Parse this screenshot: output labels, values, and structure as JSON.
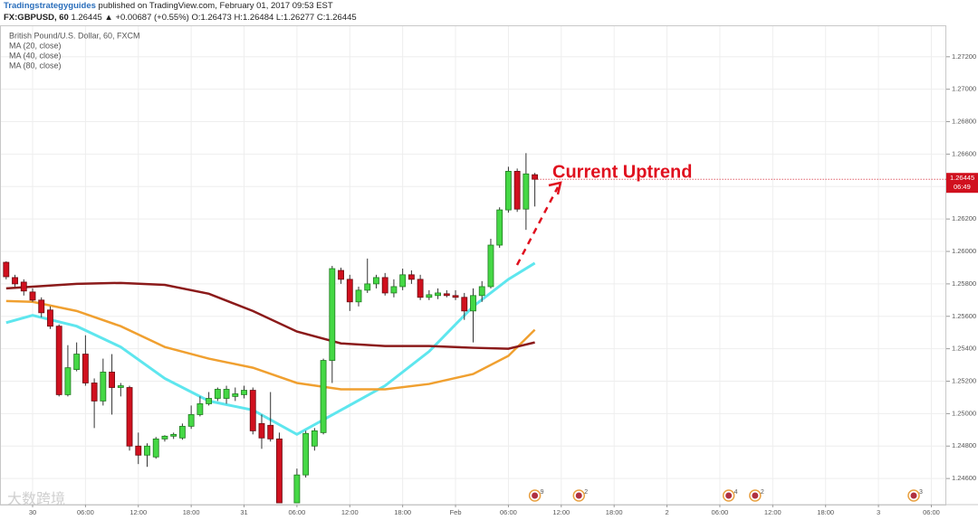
{
  "header": {
    "author": "Tradingstrategyguides",
    "published": "published on TradingView.com, February 01, 2017 09:53 EST",
    "symbol": "FX:GBPUSD, 60",
    "quote": "1.26445 ▲ +0.00687 (+0.55%) O:1.26473 H:1.26484 L:1.26277 C:1.26445"
  },
  "watermark": "大数跨境",
  "chart_data": {
    "type": "candlestick",
    "title": "British Pound/U.S. Dollar, 60, FXCM",
    "annotation": "Current Uptrend",
    "up_color": "#45d845",
    "down_color": "#d0101e",
    "grid": true,
    "xlim": [
      -3.7,
      103.7
    ],
    "xticks": [
      {
        "value": 0,
        "label": "30"
      },
      {
        "value": 6,
        "label": "06:00"
      },
      {
        "value": 12,
        "label": "12:00"
      },
      {
        "value": 18,
        "label": "18:00"
      },
      {
        "value": 24,
        "label": "31"
      },
      {
        "value": 30,
        "label": "06:00"
      },
      {
        "value": 36,
        "label": "12:00"
      },
      {
        "value": 42,
        "label": "18:00"
      },
      {
        "value": 48,
        "label": "Feb"
      },
      {
        "value": 54,
        "label": "06:00"
      },
      {
        "value": 60,
        "label": "12:00"
      },
      {
        "value": 66,
        "label": "18:00"
      },
      {
        "value": 72,
        "label": "2"
      },
      {
        "value": 78,
        "label": "06:00"
      },
      {
        "value": 84,
        "label": "12:00"
      },
      {
        "value": 90,
        "label": "18:00"
      },
      {
        "value": 96,
        "label": "3"
      },
      {
        "value": 102,
        "label": "06:00"
      }
    ],
    "ylim": [
      1.24439,
      1.27394
    ],
    "yticks": [
      {
        "value": 1.246,
        "label": "1.24600"
      },
      {
        "value": 1.248,
        "label": "1.24800"
      },
      {
        "value": 1.25,
        "label": "1.25000"
      },
      {
        "value": 1.252,
        "label": "1.25200"
      },
      {
        "value": 1.254,
        "label": "1.25400"
      },
      {
        "value": 1.256,
        "label": "1.25600"
      },
      {
        "value": 1.258,
        "label": "1.25800"
      },
      {
        "value": 1.26,
        "label": "1.26000"
      },
      {
        "value": 1.262,
        "label": "1.26200"
      },
      {
        "value": 1.264,
        "label": "1.26400"
      },
      {
        "value": 1.266,
        "label": "1.26600"
      },
      {
        "value": 1.268,
        "label": "1.26800"
      },
      {
        "value": 1.27,
        "label": "1.27000"
      },
      {
        "value": 1.272,
        "label": "1.27200"
      }
    ],
    "last_price": {
      "value": 1.26445,
      "label": "1.26445"
    },
    "countdown": "06:49",
    "x": [
      -3,
      -2,
      -1,
      0,
      1,
      2,
      3,
      4,
      5,
      6,
      7,
      8,
      9,
      10,
      11,
      12,
      13,
      14,
      15,
      16,
      17,
      18,
      19,
      20,
      21,
      22,
      23,
      24,
      25,
      26,
      27,
      28,
      30,
      31,
      32,
      33,
      34,
      35,
      36,
      37,
      38,
      39,
      40,
      41,
      42,
      43,
      44,
      45,
      46,
      47,
      48,
      49,
      50,
      51,
      52,
      53,
      54,
      55,
      56,
      57
    ],
    "open": [
      1.25933,
      1.25839,
      1.25811,
      1.2575,
      1.257,
      1.25639,
      1.25539,
      1.25117,
      1.25272,
      1.25367,
      1.25189,
      1.25078,
      1.25256,
      1.25161,
      1.25161,
      1.248,
      1.24744,
      1.24733,
      1.24844,
      1.24861,
      1.2485,
      1.24922,
      1.24994,
      1.25061,
      1.25094,
      1.25094,
      1.25106,
      1.25117,
      1.25144,
      1.24939,
      1.24928,
      1.24844,
      1.2445,
      1.24622,
      1.248,
      1.24883,
      1.25328,
      1.25883,
      1.25828,
      1.25689,
      1.25761,
      1.258,
      1.25839,
      1.25744,
      1.25783,
      1.25856,
      1.25828,
      1.25717,
      1.25728,
      1.25739,
      1.25728,
      1.25717,
      1.25633,
      1.25728,
      1.25783,
      1.26039,
      1.26256,
      1.26494,
      1.26261,
      1.26473
    ],
    "high": [
      1.25939,
      1.25856,
      1.25828,
      1.25772,
      1.25717,
      1.25661,
      1.2555,
      1.25422,
      1.25439,
      1.25483,
      1.25217,
      1.25339,
      1.25367,
      1.25189,
      1.25172,
      1.24883,
      1.24817,
      1.24856,
      1.24867,
      1.24883,
      1.24939,
      1.2505,
      1.25106,
      1.25133,
      1.25161,
      1.25172,
      1.25161,
      1.25172,
      1.25161,
      1.24994,
      1.25133,
      1.24883,
      1.24661,
      1.24894,
      1.24911,
      1.25339,
      1.25911,
      1.259,
      1.25856,
      1.25783,
      1.25956,
      1.25856,
      1.25867,
      1.25828,
      1.25894,
      1.25883,
      1.25856,
      1.25761,
      1.25772,
      1.25761,
      1.25761,
      1.25744,
      1.25772,
      1.25817,
      1.26078,
      1.26272,
      1.26522,
      1.26511,
      1.26606,
      1.26484
    ],
    "low": [
      1.25828,
      1.25783,
      1.25728,
      1.25689,
      1.25594,
      1.25522,
      1.25106,
      1.25106,
      1.25261,
      1.25172,
      1.24911,
      1.2505,
      1.24994,
      1.25106,
      1.24772,
      1.24689,
      1.24672,
      1.24722,
      1.24828,
      1.24844,
      1.24839,
      1.24906,
      1.24983,
      1.2505,
      1.25078,
      1.25061,
      1.25078,
      1.25094,
      1.24872,
      1.24783,
      1.24828,
      1.2445,
      1.2445,
      1.24606,
      1.24772,
      1.24872,
      1.25189,
      1.258,
      1.25633,
      1.25661,
      1.25744,
      1.25772,
      1.25728,
      1.25717,
      1.25761,
      1.258,
      1.257,
      1.257,
      1.25706,
      1.25717,
      1.257,
      1.25578,
      1.25439,
      1.25689,
      1.25772,
      1.26022,
      1.26239,
      1.26244,
      1.26133,
      1.26277
    ],
    "close": [
      1.25844,
      1.258,
      1.25756,
      1.257,
      1.25622,
      1.25539,
      1.25117,
      1.25283,
      1.25367,
      1.25189,
      1.25078,
      1.25256,
      1.25161,
      1.25172,
      1.248,
      1.24744,
      1.248,
      1.24844,
      1.24861,
      1.24872,
      1.24922,
      1.24994,
      1.25061,
      1.25094,
      1.2515,
      1.2515,
      1.25122,
      1.25144,
      1.24894,
      1.2485,
      1.24844,
      1.2445,
      1.24622,
      1.24878,
      1.24894,
      1.25328,
      1.25894,
      1.25828,
      1.25689,
      1.25761,
      1.258,
      1.25839,
      1.25744,
      1.25783,
      1.25856,
      1.25828,
      1.25717,
      1.25733,
      1.25744,
      1.25728,
      1.25717,
      1.25633,
      1.25728,
      1.25783,
      1.26039,
      1.26256,
      1.26494,
      1.26261,
      1.26478,
      1.26445
    ],
    "series": [
      {
        "name": "MA (20, close)",
        "color": "#5ee6ee",
        "x": [
          -3,
          0,
          5,
          10,
          15,
          20,
          25,
          30,
          35,
          40,
          45,
          50,
          54,
          57
        ],
        "values": [
          1.25561,
          1.25606,
          1.25539,
          1.25411,
          1.25217,
          1.25078,
          1.25022,
          1.24872,
          1.25022,
          1.25172,
          1.25383,
          1.25661,
          1.25828,
          1.25928
        ]
      },
      {
        "name": "MA (40, close)",
        "color": "#f0a030",
        "x": [
          -3,
          0,
          5,
          10,
          15,
          20,
          25,
          30,
          35,
          40,
          45,
          50,
          54,
          57
        ],
        "values": [
          1.25694,
          1.25689,
          1.25633,
          1.25539,
          1.25411,
          1.25339,
          1.25283,
          1.25189,
          1.2515,
          1.2515,
          1.25183,
          1.25244,
          1.25356,
          1.25517
        ]
      },
      {
        "name": "MA (80, close)",
        "color": "#8b1a1a",
        "x": [
          -3,
          0,
          5,
          10,
          15,
          20,
          25,
          30,
          35,
          40,
          45,
          50,
          54,
          57
        ],
        "values": [
          1.25772,
          1.25783,
          1.258,
          1.25806,
          1.25794,
          1.25739,
          1.25633,
          1.25506,
          1.25433,
          1.25417,
          1.25417,
          1.25406,
          1.254,
          1.25439
        ]
      }
    ],
    "events": {
      "x": [
        57,
        62,
        79,
        82,
        100
      ],
      "labels": [
        "9",
        "2",
        "4",
        "2",
        "3"
      ]
    }
  }
}
